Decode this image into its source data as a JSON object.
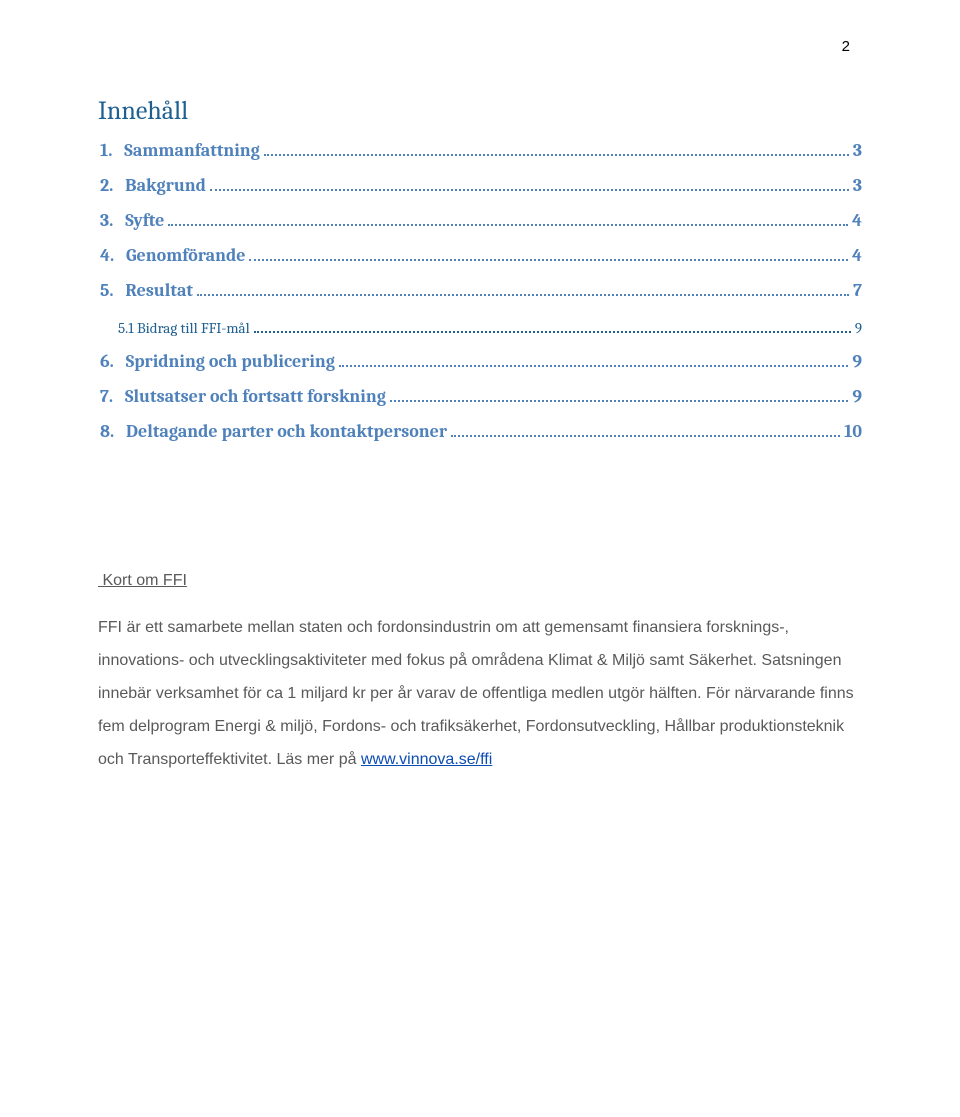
{
  "page_number_top": "2",
  "toc": {
    "title": "Innehåll",
    "entries": [
      {
        "num": "1.",
        "label": "Sammanfattning",
        "page": "3",
        "sub": false
      },
      {
        "num": "2.",
        "label": "Bakgrund",
        "page": "3",
        "sub": false
      },
      {
        "num": "3.",
        "label": "Syfte",
        "page": "4",
        "sub": false
      },
      {
        "num": "4.",
        "label": "Genomförande",
        "page": "4",
        "sub": false
      },
      {
        "num": "5.",
        "label": "Resultat",
        "page": "7",
        "sub": false
      },
      {
        "num": "5.1",
        "label": "Bidrag till FFI-mål",
        "page": "9",
        "sub": true
      },
      {
        "num": "6.",
        "label": "Spridning och publicering",
        "page": "9",
        "sub": false
      },
      {
        "num": "7.",
        "label": "Slutsatser och fortsatt forskning",
        "page": "9",
        "sub": false
      },
      {
        "num": "8.",
        "label": "Deltagande parter och kontaktpersoner",
        "page": "10",
        "sub": false
      }
    ]
  },
  "about": {
    "title": "Kort om FFI",
    "body_before_link": "FFI är ett samarbete mellan staten och fordonsindustrin om att gemensamt finansiera forsknings-, innovations- och utvecklingsaktiviteter med fokus på områdena Klimat & Miljö samt Säkerhet. Satsningen innebär verksamhet för ca 1 miljard kr per år varav de offentliga medlen utgör hälften.\nFör närvarande finns fem delprogram Energi & miljö, Fordons- och trafiksäkerhet, Fordonsutveckling, Hållbar produktionsteknik och Transporteffektivitet. Läs mer på ",
    "link_text": "www.vinnova.se/ffi"
  },
  "colors": {
    "toc_title": "#1f6091",
    "toc_entry": "#4f81bb",
    "toc_sub": "#1f6091",
    "body_text": "#595959",
    "link": "#0b4cb4",
    "background": "#ffffff"
  },
  "typography": {
    "toc_title_fontsize": 26,
    "toc_entry_fontsize": 18,
    "toc_sub_fontsize": 15,
    "body_fontsize": 16,
    "toc_font": "Cambria",
    "body_font": "Arial"
  }
}
